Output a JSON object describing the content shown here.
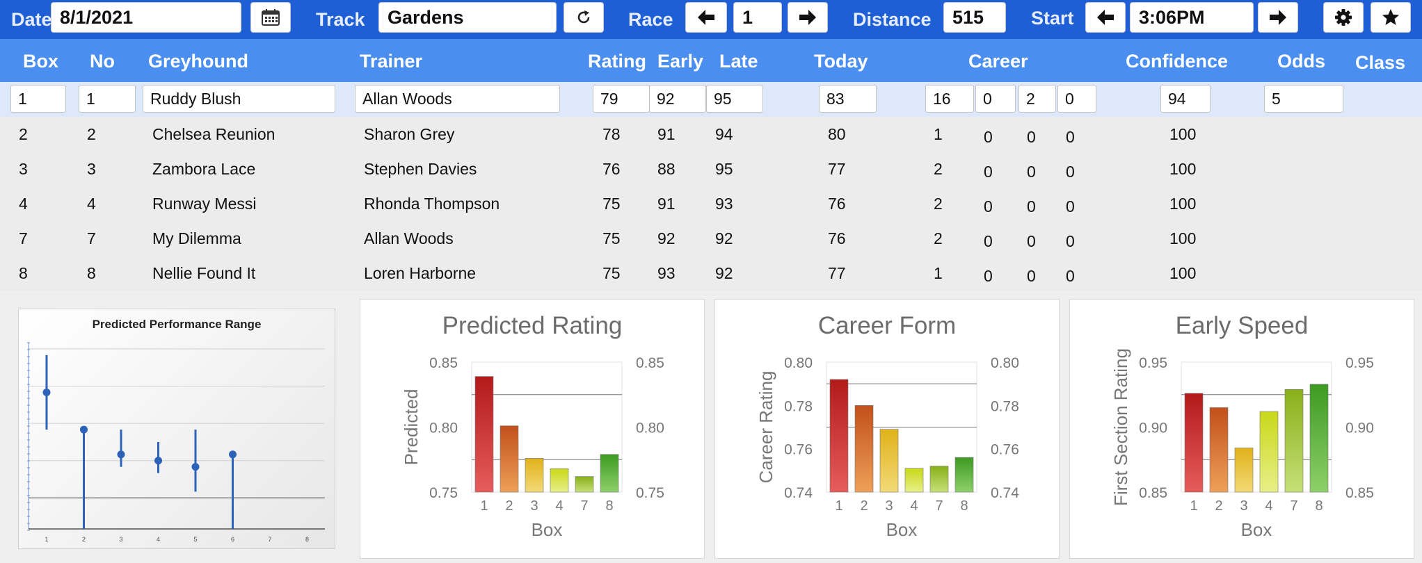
{
  "toolbar": {
    "date_label": "Date",
    "date_value": "8/1/2021",
    "track_label": "Track",
    "track_value": "Gardens",
    "race_label": "Race",
    "race_value": "1",
    "distance_label": "Distance",
    "distance_value": "515",
    "start_label": "Start",
    "start_value": "3:06PM",
    "icons": [
      "calendar-icon",
      "refresh-icon",
      "arrow-left-icon",
      "arrow-right-icon",
      "gear-icon",
      "star-icon"
    ]
  },
  "columns": {
    "box": "Box",
    "no": "No",
    "greyhound": "Greyhound",
    "trainer": "Trainer",
    "rating": "Rating",
    "early": "Early",
    "late": "Late",
    "today": "Today",
    "career": "Career",
    "confidence": "Confidence",
    "odds": "Odds",
    "class": "Class"
  },
  "rows": [
    {
      "box": "1",
      "no": "1",
      "greyhound": "Ruddy Blush",
      "trainer": "Allan Woods",
      "rating": "79",
      "early": "92",
      "late": "95",
      "today": "83",
      "career": [
        "16",
        "0",
        "2",
        "0"
      ],
      "confidence": "94",
      "odds": "5"
    },
    {
      "box": "2",
      "no": "2",
      "greyhound": "Chelsea Reunion",
      "trainer": "Sharon Grey",
      "rating": "78",
      "early": "91",
      "late": "94",
      "today": "80",
      "career": [
        "1",
        "0",
        "0",
        "0"
      ],
      "confidence": "100",
      "odds": ""
    },
    {
      "box": "3",
      "no": "3",
      "greyhound": "Zambora Lace",
      "trainer": "Stephen Davies",
      "rating": "76",
      "early": "88",
      "late": "95",
      "today": "77",
      "career": [
        "2",
        "0",
        "0",
        "0"
      ],
      "confidence": "100",
      "odds": ""
    },
    {
      "box": "4",
      "no": "4",
      "greyhound": "Runway Messi",
      "trainer": "Rhonda Thompson",
      "rating": "75",
      "early": "91",
      "late": "93",
      "today": "76",
      "career": [
        "2",
        "0",
        "0",
        "0"
      ],
      "confidence": "100",
      "odds": ""
    },
    {
      "box": "7",
      "no": "7",
      "greyhound": "My Dilemma",
      "trainer": "Allan Woods",
      "rating": "75",
      "early": "92",
      "late": "92",
      "today": "76",
      "career": [
        "2",
        "0",
        "0",
        "0"
      ],
      "confidence": "100",
      "odds": ""
    },
    {
      "box": "8",
      "no": "8",
      "greyhound": "Nellie Found It",
      "trainer": "Loren Harborne",
      "rating": "75",
      "early": "93",
      "late": "92",
      "today": "77",
      "career": [
        "1",
        "0",
        "0",
        "0"
      ],
      "confidence": "100",
      "odds": ""
    }
  ],
  "colors": {
    "toolbar_bg": "#1f5fd6",
    "header_bg": "#4a8ff0",
    "selected_row": "#dde8fa",
    "range_blue": "#2c62b8"
  },
  "chart_data": [
    {
      "type": "scatter",
      "title": "Predicted Performance Range",
      "x": [
        1,
        2,
        3,
        4,
        5,
        6
      ],
      "categories": [
        "1",
        "2",
        "3",
        "4",
        "5",
        "6",
        "7",
        "8"
      ],
      "points": [
        0.83,
        0.8,
        0.78,
        0.775,
        0.77,
        0.78
      ],
      "ranges": [
        [
          0.8,
          0.86
        ],
        [
          0.72,
          0.8
        ],
        [
          0.77,
          0.8
        ],
        [
          0.765,
          0.79
        ],
        [
          0.75,
          0.8
        ],
        [
          0.72,
          0.78
        ]
      ],
      "ylim": [
        0.72,
        0.87
      ],
      "gridlines": [
        0.745,
        0.775,
        0.805,
        0.835,
        0.865
      ],
      "grid": true
    },
    {
      "type": "bar",
      "title": "Predicted Rating",
      "categories": [
        "1",
        "2",
        "3",
        "4",
        "7",
        "8"
      ],
      "values": [
        0.839,
        0.801,
        0.776,
        0.768,
        0.762,
        0.779
      ],
      "xlabel": "Box",
      "ylabel": "Predicted",
      "ylim": [
        0.75,
        0.85
      ],
      "yticks": [
        "0.75",
        "0.80",
        "0.85"
      ],
      "reference_lines": [
        0.825,
        0.775
      ]
    },
    {
      "type": "bar",
      "title": "Career Form",
      "categories": [
        "1",
        "2",
        "3",
        "4",
        "7",
        "8"
      ],
      "values": [
        0.792,
        0.78,
        0.769,
        0.751,
        0.752,
        0.756
      ],
      "xlabel": "Box",
      "ylabel": "Career Rating",
      "ylim": [
        0.74,
        0.8
      ],
      "yticks": [
        "0.74",
        "0.76",
        "0.78",
        "0.80"
      ],
      "reference_lines": [
        0.79,
        0.77
      ]
    },
    {
      "type": "bar",
      "title": "Early Speed",
      "categories": [
        "1",
        "2",
        "3",
        "4",
        "7",
        "8"
      ],
      "values": [
        0.926,
        0.915,
        0.884,
        0.912,
        0.929,
        0.933
      ],
      "xlabel": "Box",
      "ylabel": "First Section Rating",
      "ylim": [
        0.85,
        0.95
      ],
      "yticks": [
        "0.85",
        "0.90",
        "0.95"
      ],
      "reference_lines": [
        0.925,
        0.875
      ]
    }
  ]
}
